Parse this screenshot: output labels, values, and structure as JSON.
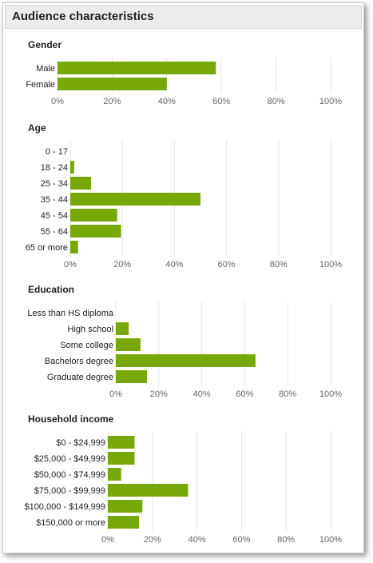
{
  "header": {
    "title": "Audience characteristics"
  },
  "colors": {
    "bar": "#78a808",
    "grid": "#e6e6e6",
    "text": "#222222",
    "tick": "#666666"
  },
  "chart_data": [
    {
      "type": "bar",
      "orientation": "horizontal",
      "title": "Gender",
      "categories": [
        "Male",
        "Female"
      ],
      "values": [
        58,
        40
      ],
      "xlim": [
        0,
        100
      ],
      "ticks": [
        "0%",
        "20%",
        "40%",
        "60%",
        "80%",
        "100%"
      ],
      "grid": true
    },
    {
      "type": "bar",
      "orientation": "horizontal",
      "title": "Age",
      "categories": [
        "0 - 17",
        "18 - 24",
        "25 - 34",
        "35 - 44",
        "45 - 54",
        "55 - 64",
        "65 or more"
      ],
      "values": [
        0,
        1.5,
        8,
        50,
        18,
        19.5,
        3
      ],
      "xlim": [
        0,
        100
      ],
      "ticks": [
        "0%",
        "20%",
        "40%",
        "60%",
        "80%",
        "100%"
      ],
      "grid": true
    },
    {
      "type": "bar",
      "orientation": "horizontal",
      "title": "Education",
      "categories": [
        "Less than HS diploma",
        "High school",
        "Some college",
        "Bachelors degree",
        "Graduate degree"
      ],
      "values": [
        0,
        6,
        11.5,
        65,
        14.5
      ],
      "xlim": [
        0,
        100
      ],
      "ticks": [
        "0%",
        "20%",
        "40%",
        "60%",
        "80%",
        "100%"
      ],
      "grid": true
    },
    {
      "type": "bar",
      "orientation": "horizontal",
      "title": "Household income",
      "categories": [
        "$0 - $24,999",
        "$25,000 - $49,999",
        "$50,000 - $74,999",
        "$75,000 - $99,999",
        "$100,000 - $149,999",
        "$150,000 or more"
      ],
      "values": [
        12,
        12,
        6,
        36,
        15.5,
        14
      ],
      "xlim": [
        0,
        100
      ],
      "ticks": [
        "0%",
        "20%",
        "40%",
        "60%",
        "80%",
        "100%"
      ],
      "grid": true
    }
  ]
}
